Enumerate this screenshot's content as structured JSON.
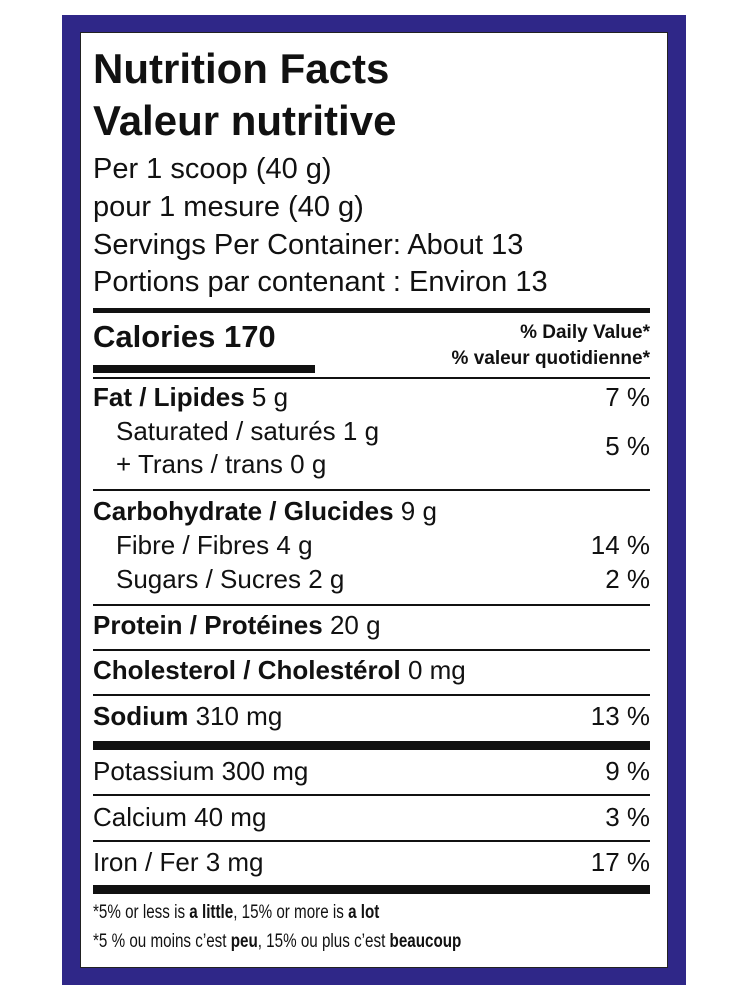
{
  "header": {
    "title_en": "Nutrition Facts",
    "title_fr": "Valeur nutritive",
    "serving_en": "Per 1 scoop (40 g)",
    "serving_fr": "pour 1 mesure (40 g)",
    "servings_en": "Servings Per Container: About 13",
    "servings_fr": "Portions par contenant : Environ 13"
  },
  "calories": {
    "label": "Calories 170",
    "dv_en": "% Daily Value*",
    "dv_fr": "% valeur quotidienne*"
  },
  "nutrients": [
    {
      "label": "Fat / Lipides",
      "amount": "5 g",
      "dv": "7 %"
    },
    {
      "label": "Saturated / saturés",
      "amount": "1 g",
      "label2": "+ Trans / trans",
      "amount2": "0 g",
      "dv": "5 %"
    },
    {
      "label": "Carbohydrate / Glucides",
      "amount": "9 g"
    },
    {
      "label": "Fibre / Fibres",
      "amount": "4 g",
      "dv": "14 %"
    },
    {
      "label": "Sugars / Sucres",
      "amount": "2 g",
      "dv": "2 %"
    },
    {
      "label": "Protein / Protéines",
      "amount": "20 g"
    },
    {
      "label": "Cholesterol / Cholestérol",
      "amount": "0 mg"
    },
    {
      "label": "Sodium",
      "amount": "310 mg",
      "dv": "13 %"
    },
    {
      "label": "Potassium",
      "amount": "300 mg",
      "dv": "9 %"
    },
    {
      "label": "Calcium",
      "amount": "40 mg",
      "dv": "3 %"
    },
    {
      "label": "Iron / Fer",
      "amount": "3 mg",
      "dv": "17 %"
    }
  ],
  "footnotes": [
    [
      "*5% or less is ",
      "a little",
      ", 15% or more is ",
      "a lot"
    ],
    [
      "*5 % ou moins c’est ",
      "peu",
      ", 15% ou plus c’est ",
      "beaucoup"
    ]
  ]
}
